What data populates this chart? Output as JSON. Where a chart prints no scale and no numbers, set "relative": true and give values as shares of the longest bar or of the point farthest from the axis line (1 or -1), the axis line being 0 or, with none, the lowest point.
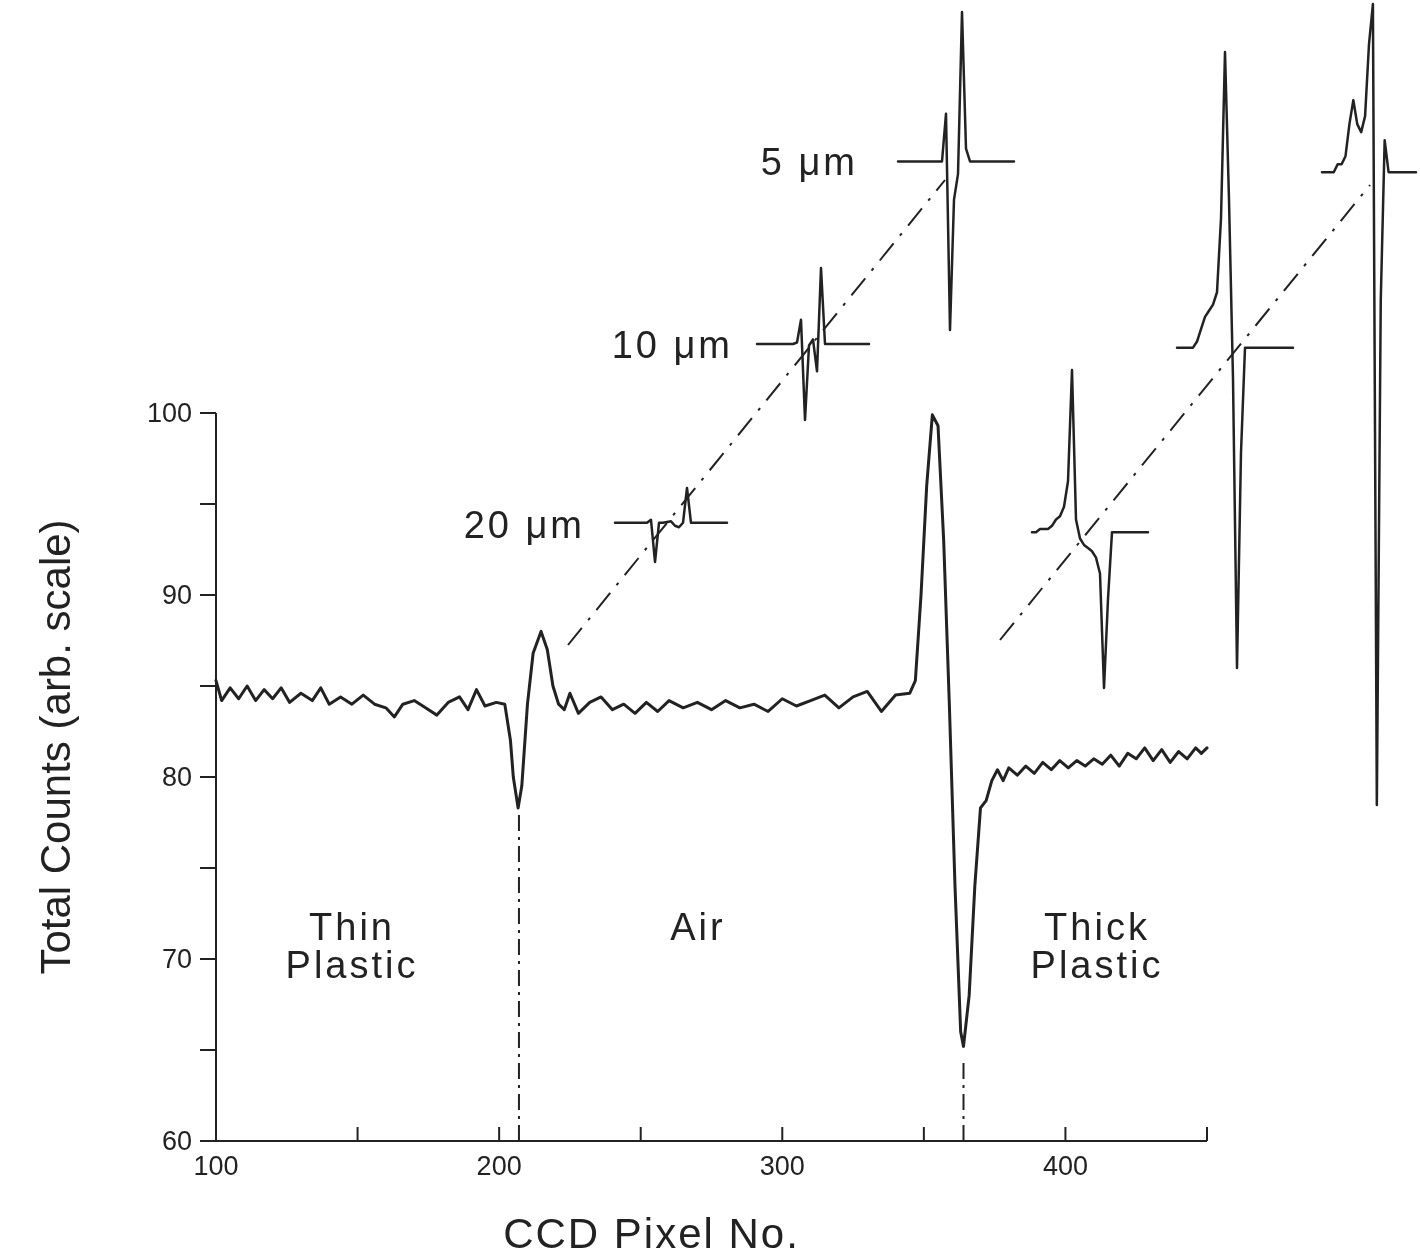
{
  "chart_data": [
    {
      "type": "line",
      "xlabel": "CCD  Pixel  No.",
      "ylabel": "Total Counts (arb. scale)",
      "xlim": [
        100,
        450
      ],
      "xticks": [
        100,
        {
          "value": 150,
          "label": null
        },
        200,
        {
          "value": 250,
          "label": null
        },
        300,
        {
          "value": 350,
          "label": null
        },
        400,
        {
          "value": 450,
          "label": null
        }
      ],
      "ylim": [
        60,
        100
      ],
      "yticks": [
        60,
        {
          "value": 65,
          "label": null
        },
        70,
        {
          "value": 75,
          "label": null
        },
        80,
        {
          "value": 85,
          "label": null
        },
        90,
        {
          "value": 95,
          "label": null
        },
        100
      ],
      "marker": "none",
      "line_style": "solid",
      "grid": false,
      "ref_lines": [
        {
          "axis": "x",
          "value": 207,
          "label": null,
          "line_style": "dashed",
          "color": "#222222"
        },
        {
          "axis": "x",
          "value": 364,
          "label": null,
          "line_style": "dashed",
          "color": "#222222"
        }
      ],
      "annotations": [
        "Thin\nPlastic",
        "Air",
        "Thick\nPlastic",
        "20 μm",
        "10 μm",
        "5 μm"
      ],
      "series": [
        {
          "color": "#222222",
          "x": [
            100,
            102,
            105,
            108,
            111,
            114,
            117,
            120,
            123,
            126,
            130,
            134,
            137,
            140,
            144,
            148,
            152,
            156,
            160,
            163,
            166,
            170,
            174,
            178,
            182,
            186,
            189,
            192,
            195,
            199,
            202,
            204,
            205,
            206.7,
            208,
            210,
            212,
            214.8,
            217,
            219,
            221,
            223,
            225,
            228,
            232,
            236,
            240,
            244,
            248,
            252,
            256,
            260,
            265,
            270,
            275,
            280,
            285,
            290,
            295,
            300,
            305,
            310,
            315,
            320,
            325,
            330,
            335,
            340,
            345,
            347,
            349,
            351,
            353,
            355,
            357,
            359,
            361,
            363,
            364,
            366,
            368,
            370,
            372,
            374,
            376,
            378,
            380,
            383,
            386,
            389,
            392,
            395,
            398,
            401,
            404,
            407,
            410,
            413,
            416,
            419,
            422,
            425,
            428,
            431,
            434,
            437,
            440,
            443,
            446,
            448,
            450
          ],
          "values": [
            85.3,
            84.2,
            84.9,
            84.3,
            85.0,
            84.2,
            84.8,
            84.3,
            84.9,
            84.1,
            84.6,
            84.2,
            84.9,
            84.0,
            84.4,
            84.0,
            84.5,
            84.0,
            83.8,
            83.3,
            84.0,
            84.2,
            83.8,
            83.4,
            84.1,
            84.4,
            83.7,
            84.8,
            83.9,
            84.1,
            84.0,
            82.0,
            80.0,
            78.3,
            79.5,
            84.0,
            86.8,
            88.0,
            87.0,
            85.0,
            84.0,
            83.7,
            84.6,
            83.5,
            84.1,
            84.4,
            83.7,
            84.0,
            83.5,
            84.1,
            83.6,
            84.2,
            83.8,
            84.1,
            83.7,
            84.2,
            83.8,
            84.0,
            83.6,
            84.3,
            83.9,
            84.2,
            84.5,
            83.8,
            84.4,
            84.7,
            83.6,
            84.5,
            84.6,
            85.3,
            90,
            96,
            99.9,
            99.3,
            93,
            84,
            74,
            66,
            65.2,
            68,
            74,
            78.3,
            78.7,
            79.8,
            80.4,
            79.8,
            80.5,
            80.1,
            80.6,
            80.2,
            80.8,
            80.4,
            80.9,
            80.5,
            80.9,
            80.6,
            81.0,
            80.7,
            81.2,
            80.6,
            81.3,
            81.0,
            81.6,
            80.9,
            81.5,
            80.8,
            81.4,
            81.0,
            81.6,
            81.3,
            81.6
          ]
        }
      ]
    },
    {
      "type": "line",
      "relative": true,
      "categories": [
        null,
        null,
        null,
        null,
        null,
        null,
        null,
        null,
        null,
        null,
        null,
        null,
        null,
        null,
        null,
        null,
        null,
        null,
        null,
        null,
        null,
        null,
        null,
        null,
        null,
        null,
        null,
        null,
        null
      ],
      "series": [
        {
          "color": "#222222",
          "values": [
            0.53,
            0.53,
            0.53,
            0.53,
            0.53,
            0.53,
            0.53,
            0.53,
            0.53,
            0.57,
            0,
            0.53,
            0.53,
            0.54,
            0.55,
            0.49,
            0.47,
            0.53,
            1.0,
            0.53,
            0.53,
            0.53,
            0.53,
            0.53,
            0.53,
            0.53,
            0.53,
            0.53,
            0.53
          ]
        }
      ]
    },
    {
      "type": "line",
      "relative": true,
      "categories": [
        null,
        null,
        null,
        null,
        null,
        null,
        null,
        null,
        null,
        null,
        null,
        null,
        null,
        null,
        null,
        null,
        null,
        null,
        null,
        null,
        null,
        null,
        null,
        null,
        null,
        null,
        null,
        null,
        null
      ],
      "series": [
        {
          "color": "#222222",
          "values": [
            0.5,
            0.5,
            0.5,
            0.5,
            0.5,
            0.5,
            0.5,
            0.5,
            0.5,
            0.5,
            0.51,
            0.66,
            0,
            0.49,
            0.53,
            0.32,
            1.0,
            0.5,
            0.5,
            0.5,
            0.5,
            0.5,
            0.5,
            0.5,
            0.5,
            0.5,
            0.5,
            0.5,
            0.5
          ]
        }
      ]
    },
    {
      "type": "line",
      "relative": true,
      "categories": [
        null,
        null,
        null,
        null,
        null,
        null,
        null,
        null,
        null,
        null,
        null,
        null,
        null,
        null,
        null,
        null,
        null,
        null,
        null,
        null,
        null,
        null,
        null,
        null,
        null,
        null,
        null,
        null,
        null,
        null
      ],
      "series": [
        {
          "color": "#222222",
          "values": [
            0.53,
            0.53,
            0.53,
            0.53,
            0.53,
            0.53,
            0.53,
            0.53,
            0.53,
            0.53,
            0.53,
            0.53,
            0.68,
            0,
            0.41,
            0.49,
            1.0,
            0.57,
            0.53,
            0.53,
            0.53,
            0.53,
            0.53,
            0.53,
            0.53,
            0.53,
            0.53,
            0.53,
            0.53,
            0.53
          ]
        }
      ]
    },
    {
      "type": "line",
      "relative": true,
      "categories": [
        null,
        null,
        null,
        null,
        null,
        null,
        null,
        null,
        null,
        null,
        null,
        null,
        null,
        null,
        null,
        null,
        null,
        null,
        null,
        null,
        null,
        null,
        null,
        null,
        null,
        null,
        null,
        null,
        null,
        null
      ],
      "series": [
        {
          "color": "#222222",
          "values": [
            0.49,
            0.49,
            0.5,
            0.5,
            0.5,
            0.51,
            0.53,
            0.54,
            0.57,
            0.65,
            1.0,
            0.53,
            0.47,
            0.45,
            0.44,
            0.43,
            0.41,
            0.36,
            0,
            0.28,
            0.49,
            0.49,
            0.49,
            0.49,
            0.49,
            0.49,
            0.49,
            0.49,
            0.49,
            0.49
          ]
        }
      ]
    },
    {
      "type": "line",
      "relative": true,
      "categories": [
        null,
        null,
        null,
        null,
        null,
        null,
        null,
        null,
        null,
        null,
        null,
        null,
        null,
        null,
        null,
        null,
        null,
        null,
        null,
        null,
        null,
        null,
        null,
        null,
        null,
        null,
        null,
        null,
        null,
        null
      ],
      "series": [
        {
          "color": "#222222",
          "values": [
            0.52,
            0.52,
            0.52,
            0.52,
            0.52,
            0.53,
            0.55,
            0.57,
            0.58,
            0.59,
            0.61,
            0.73,
            1.0,
            0.76,
            0.47,
            0,
            0.35,
            0.52,
            0.52,
            0.52,
            0.52,
            0.52,
            0.52,
            0.52,
            0.52,
            0.52,
            0.52,
            0.52,
            0.52,
            0.52
          ]
        }
      ]
    },
    {
      "type": "line",
      "relative": true,
      "categories": [
        null,
        null,
        null,
        null,
        null,
        null,
        null,
        null,
        null,
        null,
        null,
        null,
        null,
        null,
        null,
        null,
        null,
        null,
        null,
        null,
        null,
        null,
        null,
        null,
        null
      ],
      "series": [
        {
          "color": "#222222",
          "values": [
            0.79,
            0.79,
            0.79,
            0.79,
            0.8,
            0.8,
            0.81,
            0.85,
            0.88,
            0.85,
            0.84,
            0.86,
            0.95,
            1.0,
            0,
            0.63,
            0.83,
            0.79,
            0.79,
            0.79,
            0.79,
            0.79,
            0.79,
            0.79,
            0.79
          ]
        }
      ]
    }
  ]
}
